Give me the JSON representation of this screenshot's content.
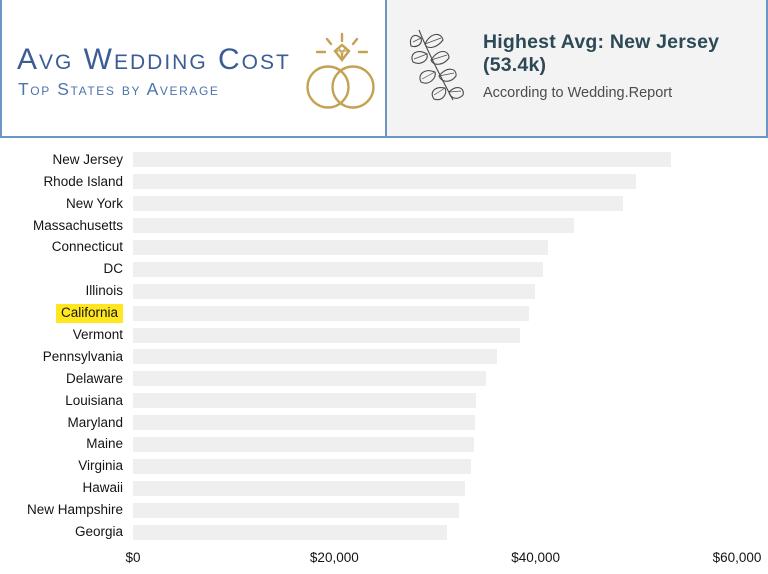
{
  "header": {
    "title": "Avg Wedding Cost",
    "subtitle": "Top States by Average",
    "callout": {
      "title": "Highest Avg: New Jersey (53.4k)",
      "subtitle": "According to Wedding.Report"
    }
  },
  "colors": {
    "accent_blue": "#6d96c6",
    "title_blue": "#3c5c95",
    "subtitle_blue": "#4d74ac",
    "ring_gold": "#c5a253",
    "leaf_gray": "#4a4a4a",
    "bar_fill": "#efefef",
    "callout_bg": "#f3f3f4",
    "callout_title": "#2d4956",
    "highlight_yellow": "#ffe61e",
    "label_text": "#141414"
  },
  "chart_data": {
    "type": "bar",
    "orientation": "horizontal",
    "title": "Avg Wedding Cost — Top States by Average",
    "categories": [
      "New Jersey",
      "Rhode Island",
      "New York",
      "Massachusetts",
      "Connecticut",
      "DC",
      "Illinois",
      "California",
      "Vermont",
      "Pennsylvania",
      "Delaware",
      "Louisiana",
      "Maryland",
      "Maine",
      "Virginia",
      "Hawaii",
      "New Hampshire",
      "Georgia"
    ],
    "values": [
      53400,
      50000,
      48700,
      43800,
      41200,
      40700,
      39900,
      39300,
      38400,
      36200,
      35100,
      34100,
      34000,
      33900,
      33600,
      33000,
      32400,
      31200
    ],
    "highlighted_category": "California",
    "x_ticks": [
      "$0",
      "$20,000",
      "$40,000",
      "$60,000"
    ],
    "x_tick_values": [
      0,
      20000,
      40000,
      60000
    ],
    "xlim": [
      0,
      60000
    ],
    "grid": false,
    "legend": false
  }
}
